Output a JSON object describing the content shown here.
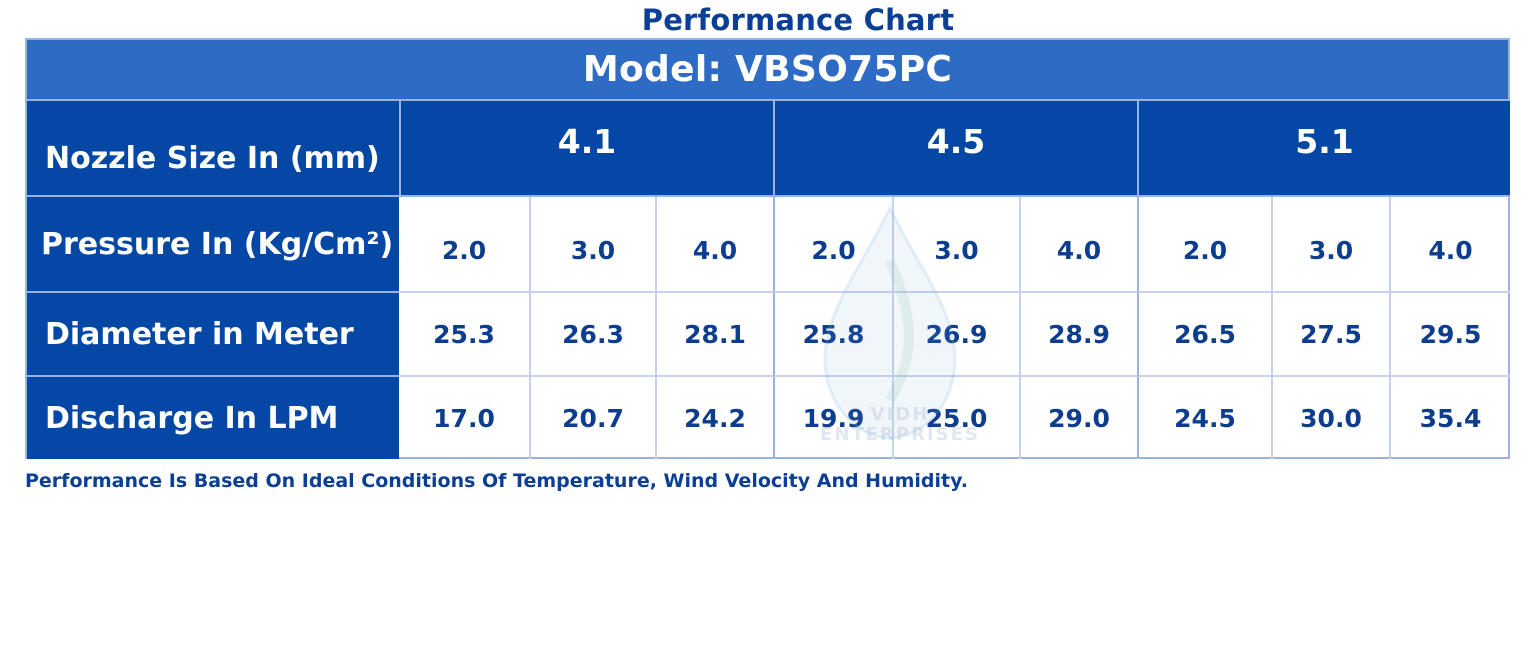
{
  "title": "Performance Chart",
  "model": "Model: VBSO75PC",
  "labels": {
    "nozzle": "Nozzle Size In (mm)",
    "pressure": "Pressure In (Kg/Cm²)",
    "diameter": "Diameter in Meter",
    "discharge": "Discharge In LPM"
  },
  "nozzle_sizes": [
    "4.1",
    "4.5",
    "5.1"
  ],
  "pressure": [
    "2.0",
    "3.0",
    "4.0",
    "2.0",
    "3.0",
    "4.0",
    "2.0",
    "3.0",
    "4.0"
  ],
  "diameter": [
    "25.3",
    "26.3",
    "28.1",
    "25.8",
    "26.9",
    "28.9",
    "26.5",
    "27.5",
    "29.5"
  ],
  "discharge": [
    "17.0",
    "20.7",
    "24.2",
    "19.9",
    "25.0",
    "29.0",
    "24.5",
    "30.0",
    "35.4"
  ],
  "watermark": {
    "line1": "VIDH",
    "line2": "ENTERPRISES"
  },
  "footnote": "Performance Is Based On Ideal Conditions Of Temperature, Wind Velocity And Humidity.",
  "colors": {
    "header_dark": "#0547a5",
    "header_model": "#2e6bc4",
    "text_blue": "#0d3d8f",
    "border": "#9bb1e3"
  }
}
